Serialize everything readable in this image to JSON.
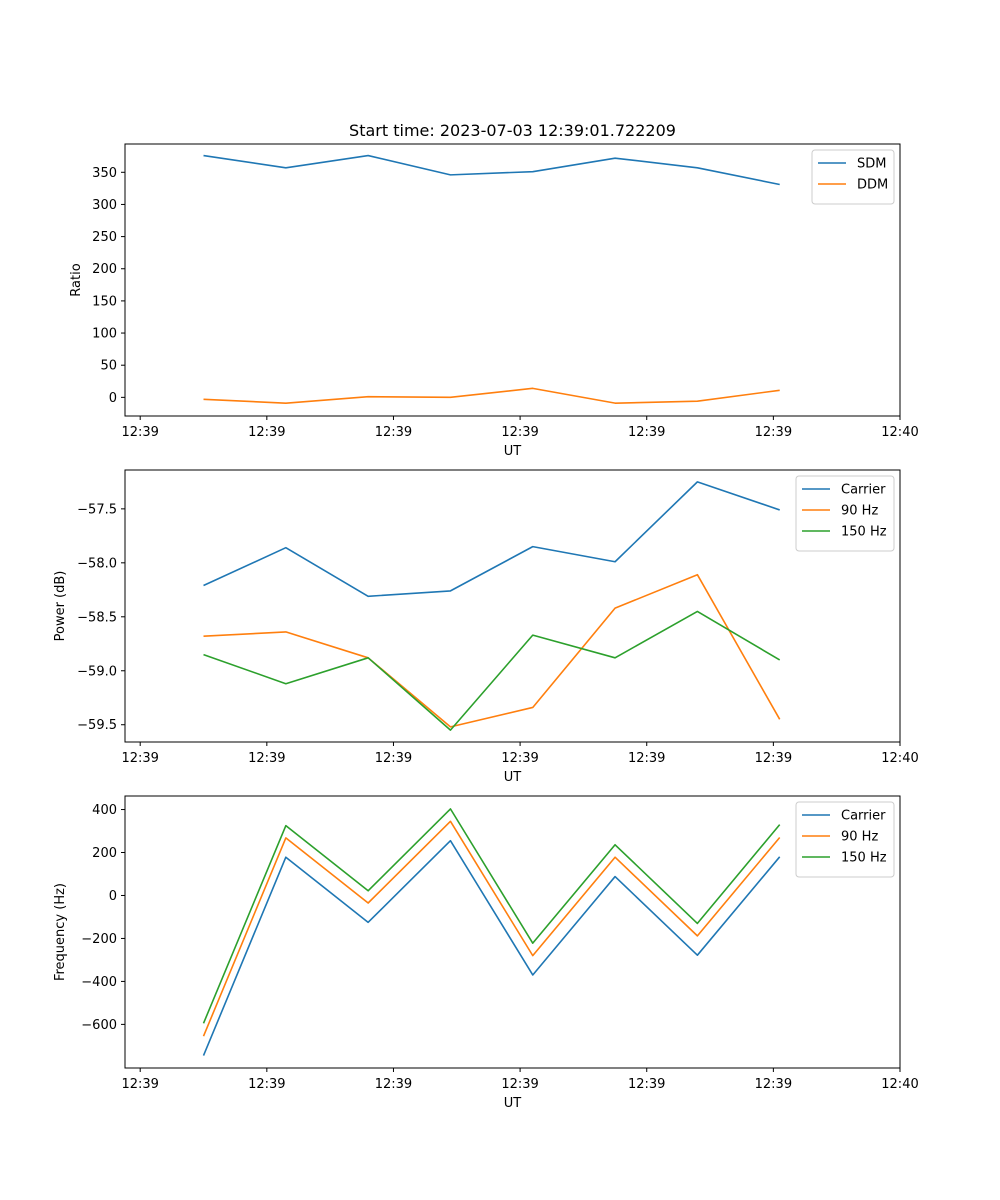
{
  "figure_title": "Start time: 2023-07-03 12:39:01.722209",
  "chart_data": [
    {
      "type": "line",
      "title": "Start time: 2023-07-03 12:39:01.722209",
      "xlabel": "UT",
      "ylabel": "Ratio",
      "x": [
        0.5,
        1.15,
        1.8,
        2.45,
        3.1,
        3.75,
        4.4,
        5.05
      ],
      "xlim": [
        -0.12,
        6.0
      ],
      "x_ticks": [
        0,
        1,
        2,
        3,
        4,
        5,
        6
      ],
      "x_tick_labels": [
        "12:39",
        "12:39",
        "12:39",
        "12:39",
        "12:39",
        "12:39",
        "12:40"
      ],
      "ylim": [
        -29,
        394
      ],
      "y_ticks": [
        0,
        50,
        100,
        150,
        200,
        250,
        300,
        350
      ],
      "y_tick_labels": [
        "0",
        "50",
        "100",
        "150",
        "200",
        "250",
        "300",
        "350"
      ],
      "legend_position": "top-right",
      "series": [
        {
          "name": "SDM",
          "color": "#1f77b4",
          "values": [
            376,
            357,
            376,
            346,
            351,
            372,
            357,
            331
          ]
        },
        {
          "name": "DDM",
          "color": "#ff7f0e",
          "values": [
            -3,
            -9,
            1,
            0,
            14,
            -9,
            -6,
            11
          ]
        }
      ]
    },
    {
      "type": "line",
      "title": "",
      "xlabel": "UT",
      "ylabel": "Power (dB)",
      "x": [
        0.5,
        1.15,
        1.8,
        2.45,
        3.1,
        3.75,
        4.4,
        5.05
      ],
      "xlim": [
        -0.12,
        6.0
      ],
      "x_ticks": [
        0,
        1,
        2,
        3,
        4,
        5,
        6
      ],
      "x_tick_labels": [
        "12:39",
        "12:39",
        "12:39",
        "12:39",
        "12:39",
        "12:39",
        "12:40"
      ],
      "ylim": [
        -59.66,
        -57.14
      ],
      "y_ticks": [
        -59.5,
        -59.0,
        -58.5,
        -58.0,
        -57.5
      ],
      "y_tick_labels": [
        "−59.5",
        "−59.0",
        "−58.5",
        "−58.0",
        "−57.5"
      ],
      "legend_position": "top-right",
      "series": [
        {
          "name": "Carrier",
          "color": "#1f77b4",
          "values": [
            -58.21,
            -57.86,
            -58.31,
            -58.26,
            -57.85,
            -57.99,
            -57.25,
            -57.51
          ]
        },
        {
          "name": "90 Hz",
          "color": "#ff7f0e",
          "values": [
            -58.68,
            -58.64,
            -58.88,
            -59.52,
            -59.34,
            -58.42,
            -58.11,
            -59.45
          ]
        },
        {
          "name": "150 Hz",
          "color": "#2ca02c",
          "values": [
            -58.85,
            -59.12,
            -58.88,
            -59.55,
            -58.67,
            -58.88,
            -58.45,
            -58.9
          ]
        }
      ]
    },
    {
      "type": "line",
      "title": "",
      "xlabel": "UT",
      "ylabel": "Frequency (Hz)",
      "x": [
        0.5,
        1.15,
        1.8,
        2.45,
        3.1,
        3.75,
        4.4,
        5.05
      ],
      "xlim": [
        -0.12,
        6.0
      ],
      "x_ticks": [
        0,
        1,
        2,
        3,
        4,
        5,
        6
      ],
      "x_tick_labels": [
        "12:39",
        "12:39",
        "12:39",
        "12:39",
        "12:39",
        "12:39",
        "12:40"
      ],
      "ylim": [
        -803,
        463
      ],
      "y_ticks": [
        -600,
        -400,
        -200,
        0,
        200,
        400
      ],
      "y_tick_labels": [
        "−600",
        "−400",
        "−200",
        "0",
        "200",
        "400"
      ],
      "legend_position": "top-right",
      "series": [
        {
          "name": "Carrier",
          "color": "#1f77b4",
          "values": [
            -745,
            178,
            -125,
            255,
            -370,
            88,
            -278,
            180
          ]
        },
        {
          "name": "90 Hz",
          "color": "#ff7f0e",
          "values": [
            -655,
            268,
            -35,
            345,
            -280,
            178,
            -188,
            270
          ]
        },
        {
          "name": "150 Hz",
          "color": "#2ca02c",
          "values": [
            -595,
            325,
            22,
            403,
            -222,
            236,
            -130,
            330
          ]
        }
      ]
    }
  ]
}
